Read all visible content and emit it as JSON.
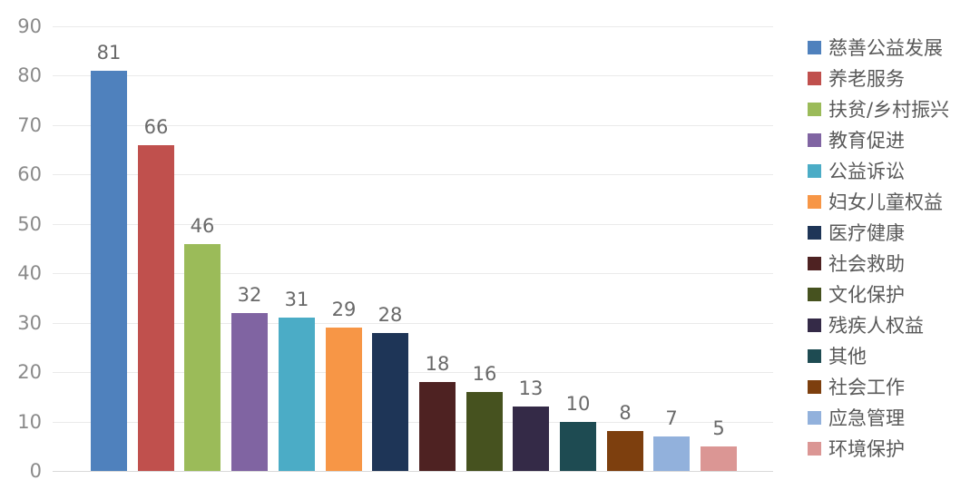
{
  "chart_data": {
    "type": "bar",
    "title": "",
    "xlabel": "",
    "ylabel": "",
    "categories": [
      "慈善公益发展",
      "养老服务",
      "扶贫/乡村振兴",
      "教育促进",
      "公益诉讼",
      "妇女儿童权益",
      "医疗健康",
      "社会救助",
      "文化保护",
      "残疾人权益",
      "其他",
      "社会工作",
      "应急管理",
      "环境保护"
    ],
    "values": [
      81,
      66,
      46,
      32,
      31,
      29,
      28,
      18,
      16,
      13,
      10,
      8,
      7,
      5
    ],
    "bar_colors": [
      "#4F81BD",
      "#C0504D",
      "#9BBB59",
      "#8064A2",
      "#4BACC6",
      "#F79646",
      "#1E3557",
      "#4E2222",
      "#46521F",
      "#342A47",
      "#1E4B52",
      "#7D3F0E",
      "#92B1DC",
      "#DB9694"
    ],
    "ylim": [
      0,
      90
    ],
    "yticks": [
      0,
      10,
      20,
      30,
      40,
      50,
      60,
      70,
      80,
      90
    ],
    "grid": true,
    "legend_position": "right",
    "value_labels_shown": true
  },
  "style": {
    "background": "#FFFFFF",
    "gridline_color": "#EAEAEA",
    "baseline_color": "#D9D9D9",
    "axis_label_color": "#8A8A8A",
    "value_label_color": "#696969",
    "legend_label_color": "#595959"
  }
}
